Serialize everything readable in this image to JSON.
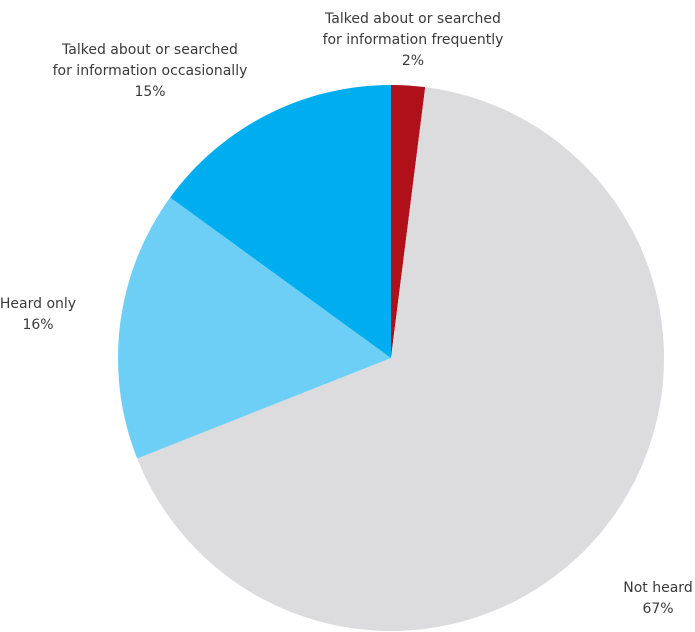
{
  "chart_data": {
    "type": "pie",
    "title": "",
    "start_angle_deg": 0,
    "direction": "clockwise",
    "slices": [
      {
        "label_lines": [
          "Talked about or searched",
          "for information frequently"
        ],
        "value": 2,
        "value_text": "2%",
        "color": "#b0101a"
      },
      {
        "label_lines": [
          "Not heard"
        ],
        "value": 67,
        "value_text": "67%",
        "color": "#dcdcde"
      },
      {
        "label_lines": [
          "Heard only"
        ],
        "value": 16,
        "value_text": "16%",
        "color": "#6ecff6"
      },
      {
        "label_lines": [
          "Talked about or searched",
          "for information occasionally"
        ],
        "value": 15,
        "value_text": "15%",
        "color": "#00aeef"
      }
    ]
  }
}
